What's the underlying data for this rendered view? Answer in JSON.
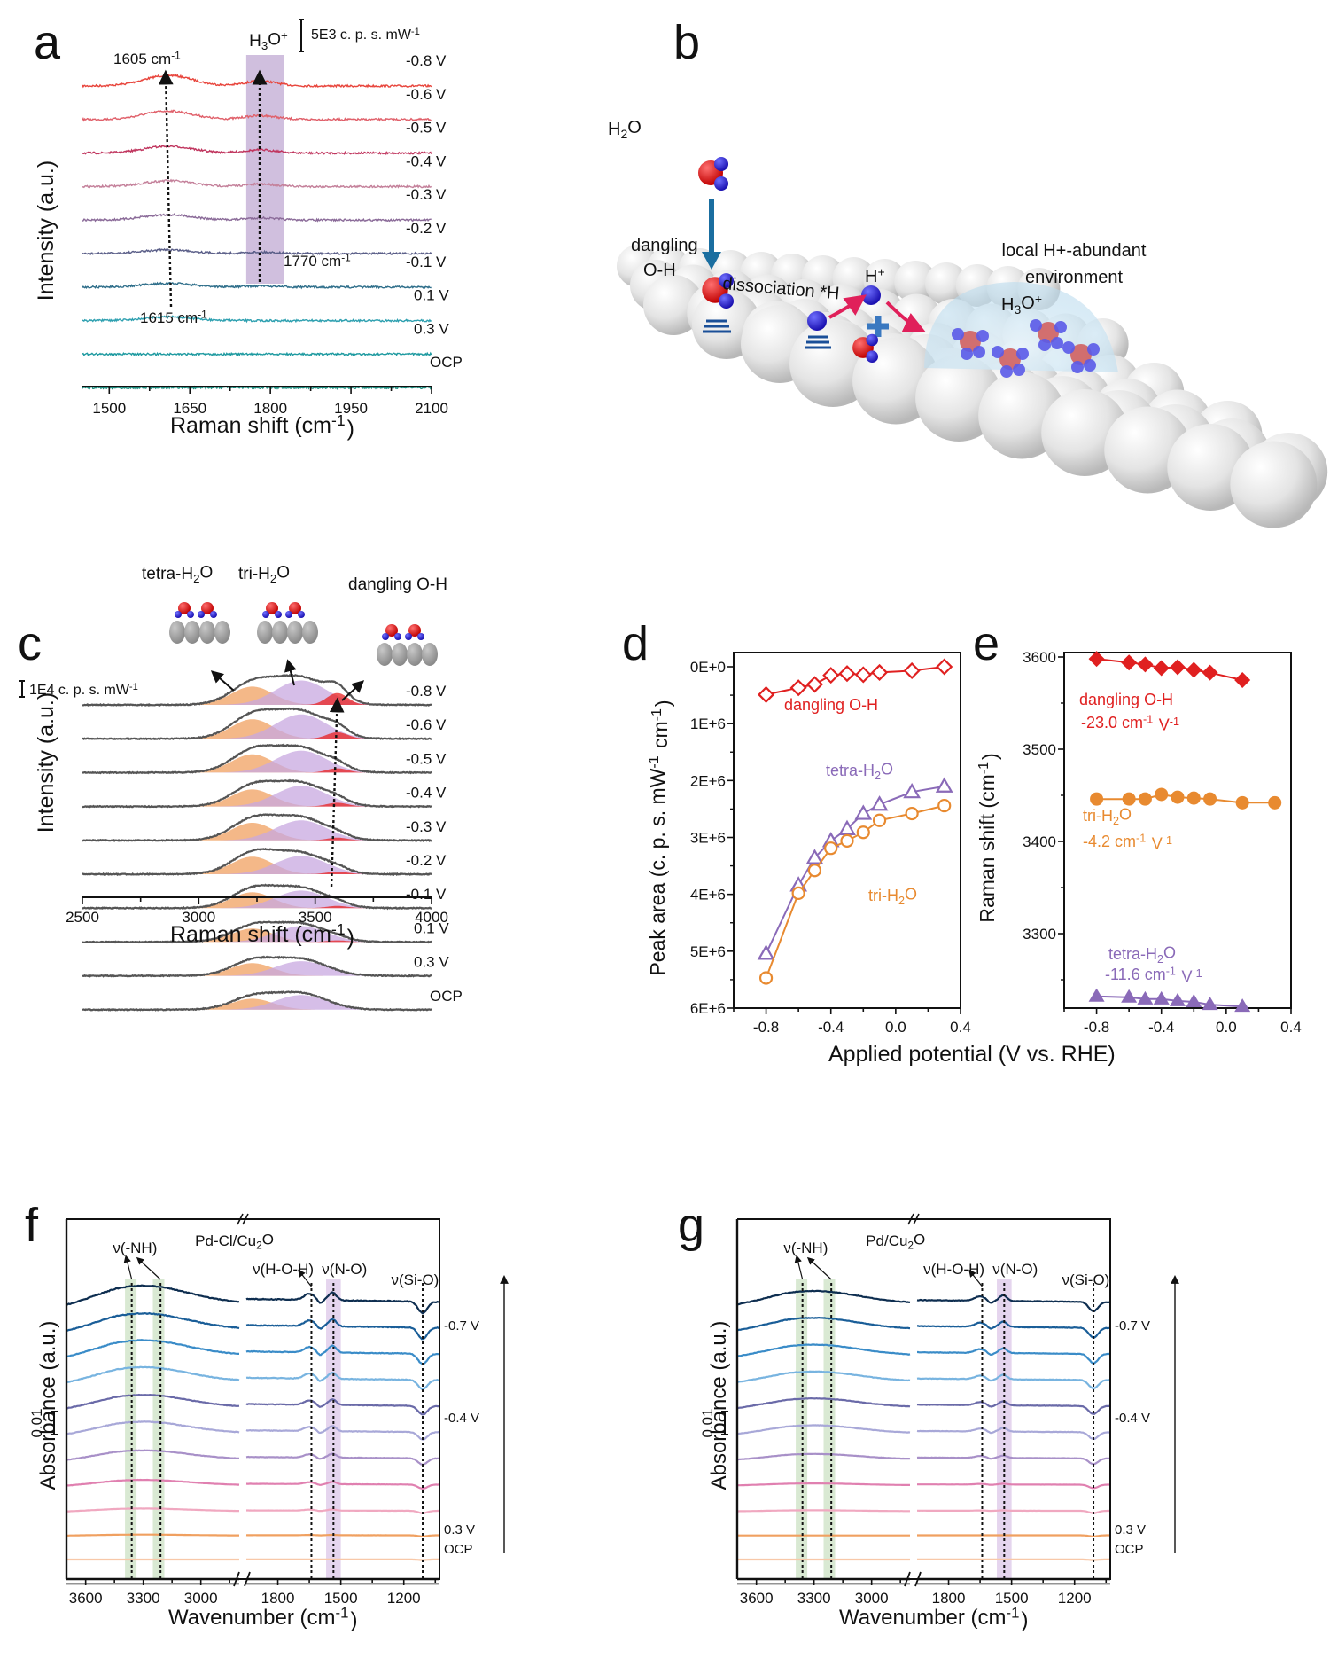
{
  "panels": {
    "a": {
      "letter": "a"
    },
    "b": {
      "letter": "b"
    },
    "c": {
      "letter": "c"
    },
    "d": {
      "letter": "d"
    },
    "e": {
      "letter": "e"
    },
    "f": {
      "letter": "f"
    },
    "g": {
      "letter": "g"
    }
  },
  "chart_data": [
    {
      "id": "a",
      "type": "line",
      "title": "",
      "xlabel": "Raman shift (cm-1)",
      "ylabel": "Intensity (a.u.)",
      "xlim": [
        1450,
        2100
      ],
      "xticks": [
        1500,
        1650,
        1800,
        1950,
        2100
      ],
      "scale_bar": "5E3 c. p. s. mW-1",
      "highlight_band": {
        "label": "H3O+",
        "range": [
          1755,
          1825
        ],
        "color": "#c8b4d8"
      },
      "annotations": [
        {
          "text": "1605 cm-1",
          "x": 1605,
          "position": "top"
        },
        {
          "text": "1615 cm-1",
          "x": 1615,
          "position": "bottom"
        },
        {
          "text": "1770 cm-1",
          "x": 1780,
          "position": "middle"
        }
      ],
      "series": [
        {
          "name": "-0.8 V",
          "color": "#e8453c",
          "peak1": 1.0,
          "peak2": 0.7
        },
        {
          "name": "-0.6 V",
          "color": "#e0606a",
          "peak1": 0.8,
          "peak2": 0.55
        },
        {
          "name": "-0.5 V",
          "color": "#c0355e",
          "peak1": 0.65,
          "peak2": 0.45
        },
        {
          "name": "-0.4 V",
          "color": "#c4809a",
          "peak1": 0.55,
          "peak2": 0.35
        },
        {
          "name": "-0.3 V",
          "color": "#8a6a98",
          "peak1": 0.5,
          "peak2": 0.3
        },
        {
          "name": "-0.2 V",
          "color": "#5a5e88",
          "peak1": 0.35,
          "peak2": 0.2
        },
        {
          "name": "-0.1 V",
          "color": "#2e6e8a",
          "peak1": 0.35,
          "peak2": 0.15
        },
        {
          "name": "0.1 V",
          "color": "#2ea0b0",
          "peak1": 0.35,
          "peak2": 0.0
        },
        {
          "name": "0.3 V",
          "color": "#1e9aa0",
          "peak1": 0.0,
          "peak2": 0.0
        },
        {
          "name": "OCP",
          "color": "#1a8a7c",
          "peak1": 0.0,
          "peak2": 0.0
        }
      ]
    },
    {
      "id": "c",
      "type": "area",
      "xlabel": "Raman shift (cm-1)",
      "ylabel": "Intensity (a.u.)",
      "xlim": [
        2500,
        4000
      ],
      "xticks": [
        2500,
        3000,
        3500,
        4000
      ],
      "scale_bar": "1E4 c. p. s. mW-1",
      "components": [
        {
          "name": "tetra-H2O",
          "center": 3230,
          "color": "#f0a060"
        },
        {
          "name": "tri-H2O",
          "center": 3440,
          "color": "#c8a8e0"
        },
        {
          "name": "dangling O-H",
          "center": 3595,
          "color": "#e82020"
        }
      ],
      "series": [
        {
          "name": "-0.8 V",
          "tetra": 0.75,
          "tri": 1.0,
          "dangling": 0.22
        },
        {
          "name": "-0.6 V",
          "tetra": 0.8,
          "tri": 1.0,
          "dangling": 0.12
        },
        {
          "name": "-0.5 V",
          "tetra": 0.75,
          "tri": 0.9,
          "dangling": 0.08
        },
        {
          "name": "-0.4 V",
          "tetra": 0.7,
          "tri": 0.85,
          "dangling": 0.07
        },
        {
          "name": "-0.3 V",
          "tetra": 0.72,
          "tri": 0.82,
          "dangling": 0.05
        },
        {
          "name": "-0.2 V",
          "tetra": 0.72,
          "tri": 0.75,
          "dangling": 0.05
        },
        {
          "name": "-0.1 V",
          "tetra": 0.65,
          "tri": 0.72,
          "dangling": 0.04
        },
        {
          "name": "0.1 V",
          "tetra": 0.55,
          "tri": 0.65,
          "dangling": 0.03
        },
        {
          "name": "0.3 V",
          "tetra": 0.52,
          "tri": 0.6,
          "dangling": 0.0
        },
        {
          "name": "OCP",
          "tetra": 0.45,
          "tri": 0.6,
          "dangling": 0.0
        }
      ],
      "insets": [
        "tetra-H2O",
        "tri-H2O",
        "dangling O-H"
      ]
    },
    {
      "id": "d",
      "type": "line",
      "xlabel": "Applied potential (V vs. RHE)",
      "ylabel": "Peak area (c. p. s. mW-1 cm-1)",
      "xlim": [
        -1.0,
        0.4
      ],
      "ylim": [
        0,
        6000000
      ],
      "y_inverted": true,
      "xticks": [
        -0.8,
        -0.4,
        0.0,
        0.4
      ],
      "yticks": [
        "0E+0",
        "1E+6",
        "2E+6",
        "3E+6",
        "4E+6",
        "5E+6",
        "6E+6"
      ],
      "series": [
        {
          "name": "dangling O-H",
          "marker": "diamond-open",
          "color": "#e02020",
          "x": [
            -0.8,
            -0.6,
            -0.5,
            -0.4,
            -0.3,
            -0.2,
            -0.1,
            0.1,
            0.3
          ],
          "y": [
            490000,
            370000,
            310000,
            150000,
            120000,
            140000,
            100000,
            70000,
            0
          ]
        },
        {
          "name": "tetra-H2O",
          "marker": "triangle-open",
          "color": "#8a6ab8",
          "x": [
            -0.8,
            -0.6,
            -0.5,
            -0.4,
            -0.3,
            -0.2,
            -0.1,
            0.1,
            0.3
          ],
          "y": [
            5040000,
            3840000,
            3360000,
            3060000,
            2850000,
            2580000,
            2420000,
            2200000,
            2100000
          ]
        },
        {
          "name": "tri-H2O",
          "marker": "circle-open",
          "color": "#e88a30",
          "x": [
            -0.8,
            -0.6,
            -0.5,
            -0.4,
            -0.3,
            -0.2,
            -0.1,
            0.1,
            0.3
          ],
          "y": [
            5470000,
            3980000,
            3580000,
            3190000,
            3060000,
            2910000,
            2700000,
            2580000,
            2440000
          ]
        }
      ]
    },
    {
      "id": "e",
      "type": "line",
      "xlabel": "Applied potential (V vs. RHE)",
      "ylabel": "Raman shift (cm-1)",
      "xlim": [
        -1.0,
        0.4
      ],
      "ylim": [
        3220,
        3600
      ],
      "xticks": [
        -0.8,
        -0.4,
        0.0,
        0.4
      ],
      "yticks": [
        3300,
        3400,
        3500,
        3600
      ],
      "series": [
        {
          "name": "dangling O-H",
          "slope_label": "-23.0 cm-1 V-1",
          "marker": "diamond-filled",
          "color": "#e02020",
          "x": [
            -0.8,
            -0.6,
            -0.5,
            -0.4,
            -0.3,
            -0.2,
            -0.1,
            0.1
          ],
          "y": [
            3598,
            3594,
            3592,
            3588,
            3589,
            3586,
            3583,
            3575
          ]
        },
        {
          "name": "tri-H2O",
          "slope_label": "-4.2 cm-1 V-1",
          "marker": "circle-filled",
          "color": "#e88a30",
          "x": [
            -0.8,
            -0.6,
            -0.5,
            -0.4,
            -0.3,
            -0.2,
            -0.1,
            0.1,
            0.3
          ],
          "y": [
            3446,
            3446,
            3446,
            3451,
            3448,
            3447,
            3446,
            3442,
            3442
          ]
        },
        {
          "name": "tetra-H2O",
          "slope_label": "-11.6 cm-1 V-1",
          "marker": "triangle-filled",
          "color": "#8a6ab8",
          "x": [
            -0.8,
            -0.6,
            -0.5,
            -0.4,
            -0.3,
            -0.2,
            -0.1,
            0.1
          ],
          "y": [
            3232,
            3231,
            3229,
            3229,
            3227,
            3226,
            3223,
            3221
          ]
        }
      ]
    },
    {
      "id": "f",
      "type": "line",
      "title": "Pd-Cl/Cu2O",
      "xlabel": "Wavenumber (cm-1)",
      "ylabel": "Absorbance (a.u.)",
      "xticks": [
        "3600",
        "3300",
        "3000",
        "1800",
        "1500",
        "1200"
      ],
      "scale_bar": "0.01",
      "right_labels": [
        "-0.7 V",
        "-0.4 V",
        "0.3 V",
        "OCP"
      ],
      "band_labels": [
        "ν(-NH)",
        "ν(H-O-H)",
        "ν(N-O)",
        "ν(Si-O)"
      ],
      "marker_lines": [
        3360,
        3210,
        1640,
        1535,
        1110
      ],
      "colors": [
        "#0e2e50",
        "#1a5e98",
        "#3a8cc8",
        "#78b4e0",
        "#6a6aa8",
        "#a8a8d8",
        "#a890c8",
        "#e080b0",
        "#f0a8c0",
        "#f0a060",
        "#f8c8a8",
        "#707070"
      ],
      "nh_intensity": [
        1.0,
        0.9,
        0.85,
        0.8,
        0.7,
        0.65,
        0.5,
        0.3,
        0.15,
        0.05,
        0.0,
        0.0
      ],
      "sio_dip": [
        1.0,
        1.0,
        0.9,
        0.8,
        0.75,
        0.65,
        0.55,
        0.35,
        0.2,
        0.1,
        0.05,
        0.0
      ]
    },
    {
      "id": "g",
      "type": "line",
      "title": "Pd/Cu2O",
      "xlabel": "Wavenumber (cm-1)",
      "ylabel": "Absorbance (a.u.)",
      "xticks": [
        "3600",
        "3300",
        "3000",
        "1800",
        "1500",
        "1200"
      ],
      "scale_bar": "0.01",
      "right_labels": [
        "-0.7 V",
        "-0.4 V",
        "0.3 V",
        "OCP"
      ],
      "band_labels": [
        "ν(-NH)",
        "ν(H-O-H)",
        "ν(N-O)",
        "ν(Si-O)"
      ],
      "marker_lines": [
        3360,
        3210,
        1640,
        1535,
        1110
      ],
      "colors": [
        "#0e2e50",
        "#1a5e98",
        "#3a8cc8",
        "#78b4e0",
        "#6a6aa8",
        "#a8a8d8",
        "#a890c8",
        "#e080b0",
        "#f0a8c0",
        "#f0a060",
        "#f8c8a8",
        "#707070"
      ],
      "nh_intensity": [
        0.7,
        0.65,
        0.6,
        0.55,
        0.5,
        0.45,
        0.3,
        0.1,
        0.05,
        0.0,
        0.0,
        0.0
      ],
      "sio_dip": [
        0.8,
        0.85,
        0.8,
        0.75,
        0.7,
        0.6,
        0.5,
        0.3,
        0.2,
        0.1,
        0.05,
        0.0
      ]
    }
  ],
  "diagram_b": {
    "labels": {
      "h2o": "H2O",
      "dangling": "dangling\nO-H",
      "dissociation": "dissociation *H",
      "hplus": "H+",
      "local": "local H+-abundant",
      "environment": "environment",
      "h3o": "H3O+"
    }
  }
}
